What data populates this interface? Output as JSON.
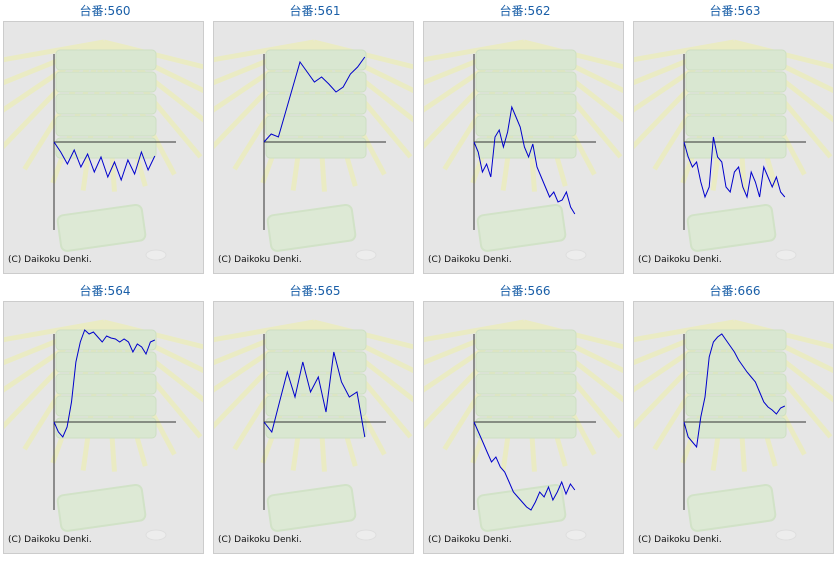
{
  "credit_text": "(C) Daikoku Denki.",
  "colors": {
    "title": "#1a5fa8",
    "line": "#0000cc",
    "axis": "#333333",
    "panel_bg": "#e6e6e6"
  },
  "chart_data": [
    {
      "type": "line",
      "title": "台番:560",
      "y": [
        0,
        -10,
        -22,
        -8,
        -25,
        -12,
        -30,
        -15,
        -35,
        -20,
        -38,
        -18,
        -32,
        -10,
        -28,
        -14
      ]
    },
    {
      "type": "line",
      "title": "台番:561",
      "y": [
        0,
        8,
        5,
        30,
        55,
        80,
        70,
        60,
        65,
        58,
        50,
        55,
        68,
        75,
        85
      ]
    },
    {
      "type": "line",
      "title": "台番:562",
      "y": [
        0,
        -10,
        -30,
        -22,
        -35,
        5,
        12,
        -5,
        10,
        35,
        25,
        15,
        -5,
        -15,
        -2,
        -25,
        -35,
        -45,
        -55,
        -50,
        -60,
        -58,
        -50,
        -65,
        -72
      ]
    },
    {
      "type": "line",
      "title": "台番:563",
      "y": [
        0,
        -15,
        -25,
        -20,
        -40,
        -55,
        -45,
        5,
        -15,
        -20,
        -45,
        -50,
        -30,
        -25,
        -45,
        -55,
        -30,
        -40,
        -55,
        -25,
        -35,
        -45,
        -35,
        -50,
        -55
      ]
    },
    {
      "type": "line",
      "title": "台番:564",
      "y": [
        0,
        -10,
        -15,
        -5,
        20,
        60,
        80,
        92,
        88,
        90,
        85,
        80,
        86,
        84,
        83,
        80,
        83,
        80,
        70,
        78,
        75,
        68,
        80,
        82
      ]
    },
    {
      "type": "line",
      "title": "台番:565",
      "y": [
        0,
        -10,
        20,
        50,
        25,
        60,
        30,
        45,
        10,
        70,
        40,
        25,
        30,
        -15
      ]
    },
    {
      "type": "line",
      "title": "台番:566",
      "y": [
        0,
        -10,
        -20,
        -30,
        -40,
        -35,
        -45,
        -50,
        -60,
        -70,
        -75,
        -80,
        -85,
        -90,
        -80,
        -70,
        -75,
        -65,
        -78,
        -70,
        -60,
        -72,
        -62,
        -68
      ]
    },
    {
      "type": "line",
      "title": "台番:666",
      "y": [
        0,
        -15,
        -20,
        -25,
        5,
        25,
        65,
        80,
        85,
        88,
        82,
        76,
        70,
        62,
        56,
        50,
        45,
        40,
        30,
        20,
        15,
        12,
        8,
        14,
        16
      ]
    }
  ]
}
